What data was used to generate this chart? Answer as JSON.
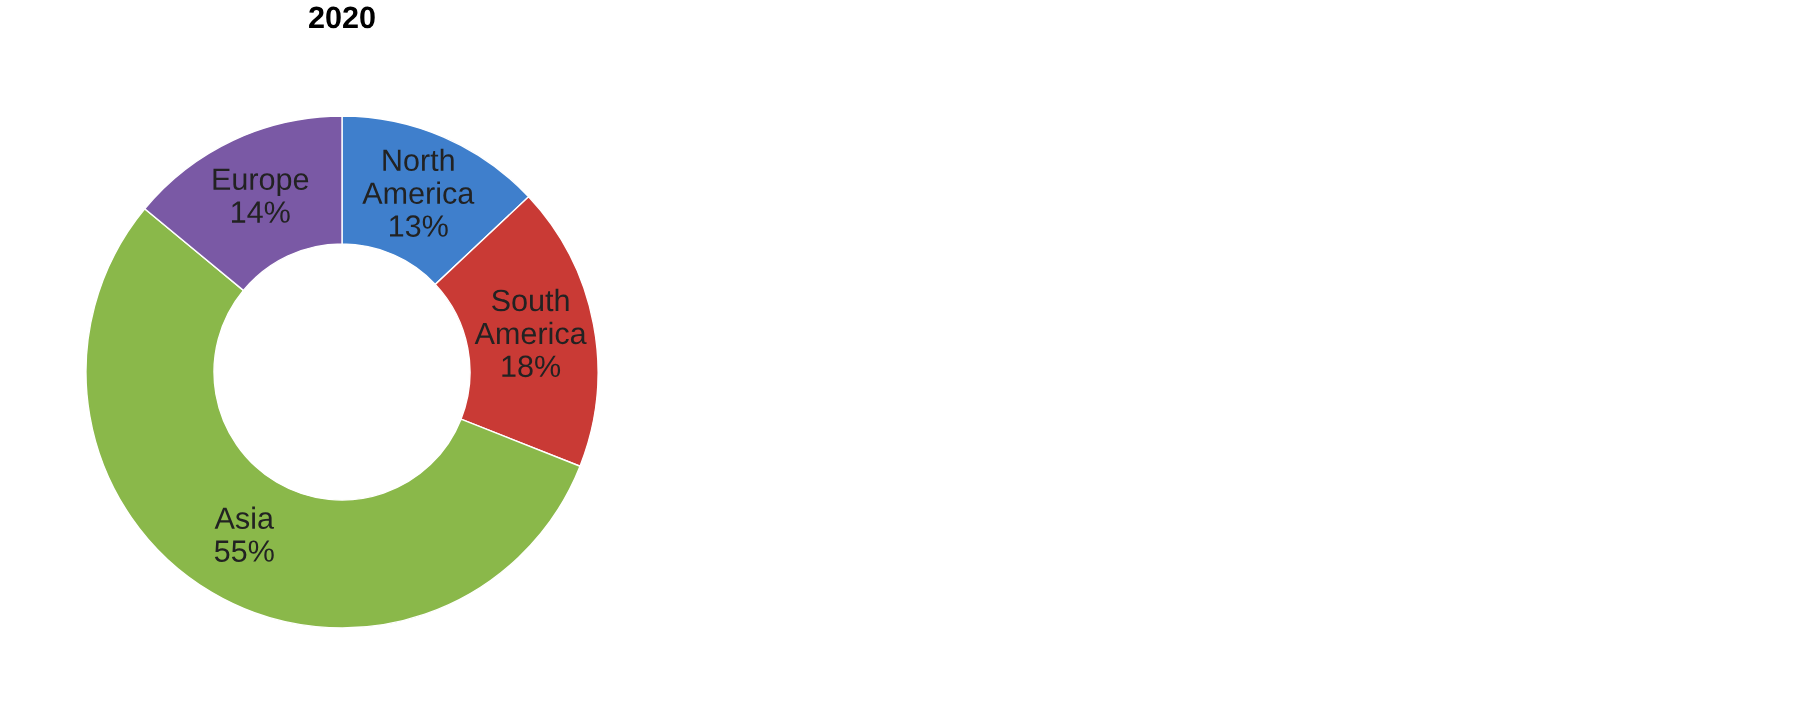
{
  "chart_data": {
    "type": "donut",
    "title": "2020",
    "categories": [
      "North America",
      "South America",
      "Asia",
      "Europe"
    ],
    "values": [
      13,
      18,
      55,
      14
    ],
    "colors": [
      "#3f7fcc",
      "#c93a35",
      "#8ab84a",
      "#7a59a5"
    ],
    "value_labels": [
      "13%",
      "18%",
      "55%",
      "14%"
    ],
    "legend": false
  }
}
